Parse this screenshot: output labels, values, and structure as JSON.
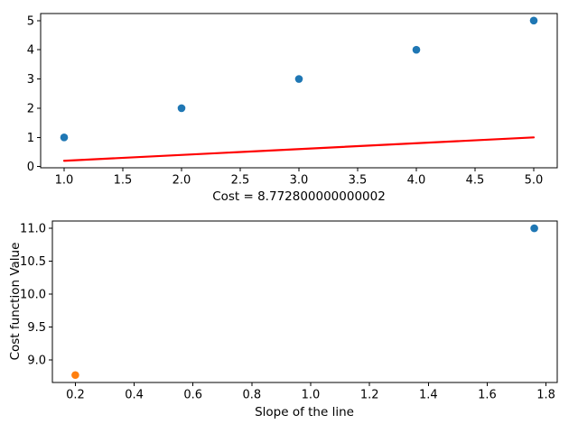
{
  "figure": {
    "background": "#ffffff",
    "spine_color": "#000000",
    "tick_color": "#000000"
  },
  "chart_data": [
    {
      "name": "regression-subplot",
      "type": "scatter",
      "title": "",
      "xlabel": "Cost = 8.772800000000002",
      "ylabel": "",
      "xlim": [
        0.8,
        5.2
      ],
      "ylim": [
        -0.04,
        5.24
      ],
      "xticks": [
        1.0,
        1.5,
        2.0,
        2.5,
        3.0,
        3.5,
        4.0,
        4.5,
        5.0
      ],
      "xtick_labels": [
        "1.0",
        "1.5",
        "2.0",
        "2.5",
        "3.0",
        "3.5",
        "4.0",
        "4.5",
        "5.0"
      ],
      "yticks": [
        0,
        1,
        2,
        3,
        4,
        5
      ],
      "ytick_labels": [
        "0",
        "1",
        "2",
        "3",
        "4",
        "5"
      ],
      "grid": false,
      "legend": null,
      "series": [
        {
          "name": "data-points",
          "type": "scatter",
          "color": "#1f77b4",
          "marker_radius": 4.3,
          "x": [
            1,
            2,
            3,
            4,
            5
          ],
          "y": [
            1,
            2,
            3,
            4,
            5
          ]
        },
        {
          "name": "fitted-line",
          "type": "line",
          "color": "#ff0000",
          "line_width": 2.2,
          "x": [
            1,
            5
          ],
          "y": [
            0.2,
            1.0
          ]
        }
      ]
    },
    {
      "name": "cost-subplot",
      "type": "scatter",
      "title": "",
      "xlabel": "Slope of the line",
      "ylabel": "Cost function Value",
      "xlim": [
        0.122,
        1.838
      ],
      "ylim": [
        8.66,
        11.11
      ],
      "xticks": [
        0.2,
        0.4,
        0.6,
        0.8,
        1.0,
        1.2,
        1.4,
        1.6,
        1.8
      ],
      "xtick_labels": [
        "0.2",
        "0.4",
        "0.6",
        "0.8",
        "1.0",
        "1.2",
        "1.4",
        "1.6",
        "1.8"
      ],
      "yticks": [
        9.0,
        9.5,
        10.0,
        10.5,
        11.0
      ],
      "ytick_labels": [
        "9.0",
        "9.5",
        "10.0",
        "10.5",
        "11.0"
      ],
      "grid": false,
      "legend": null,
      "series": [
        {
          "name": "previous-slope-cost",
          "type": "scatter",
          "color": "#1f77b4",
          "marker_radius": 4.3,
          "x": [
            1.76
          ],
          "y": [
            11.0
          ]
        },
        {
          "name": "current-slope-cost",
          "type": "scatter",
          "color": "#ff7f0e",
          "marker_radius": 4.3,
          "x": [
            0.2
          ],
          "y": [
            8.7728
          ]
        }
      ]
    }
  ]
}
